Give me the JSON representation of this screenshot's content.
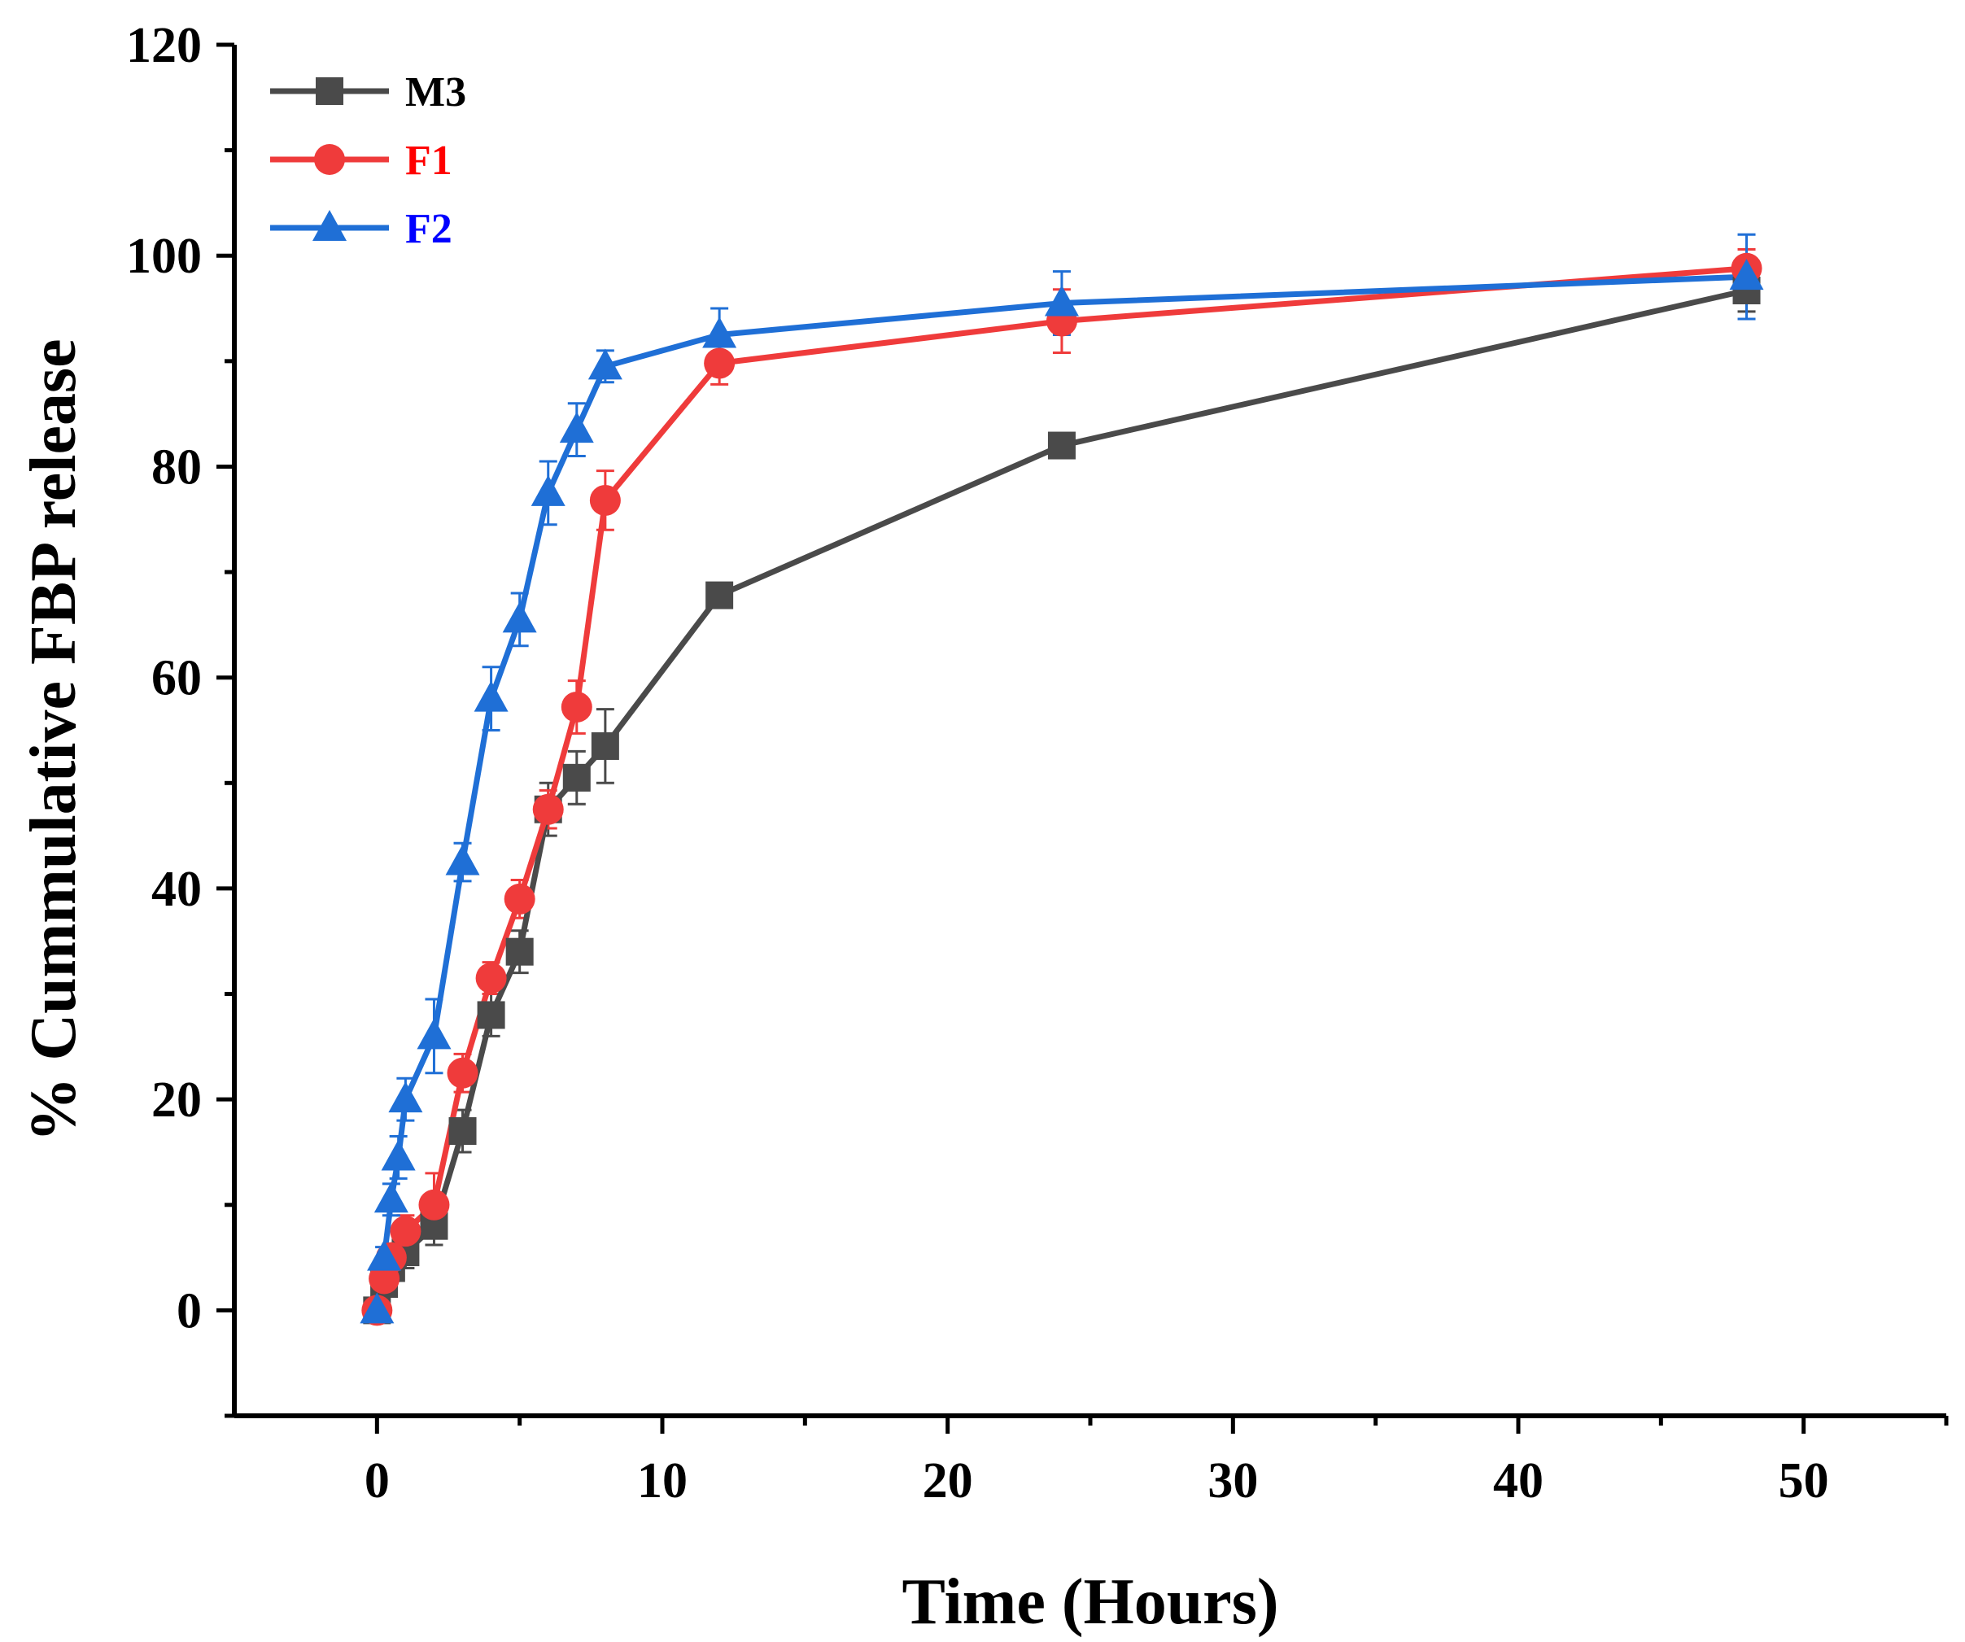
{
  "chart_data": {
    "type": "line",
    "title": "",
    "xlabel": "Time (Hours)",
    "ylabel": "% Cummulative FBP release",
    "xlim": [
      -5,
      55
    ],
    "ylim": [
      -10,
      120
    ],
    "xticks": [
      0,
      10,
      20,
      30,
      40,
      50
    ],
    "yticks": [
      0,
      20,
      40,
      60,
      80,
      100,
      120
    ],
    "x_minor_step": 5,
    "y_minor_step": 10,
    "legend_position": "top-left",
    "series": [
      {
        "name": "M3",
        "color": "#4a4a4a",
        "marker": "square",
        "x": [
          0,
          0.25,
          0.5,
          1,
          2,
          3,
          4,
          5,
          6,
          7,
          8,
          12,
          24,
          48
        ],
        "y": [
          0,
          2.5,
          4,
          5.5,
          8,
          17,
          28,
          34,
          47.5,
          50.5,
          53.5,
          67.8,
          82,
          96.7
        ],
        "err": [
          0.8,
          1,
          1.2,
          1.5,
          1.8,
          2,
          2,
          2,
          2.5,
          2.5,
          3.5,
          0.8,
          0.8,
          2
        ]
      },
      {
        "name": "F1",
        "color": "#ef3b3b",
        "marker": "circle",
        "x": [
          0,
          0.25,
          0.5,
          1,
          2,
          3,
          4,
          5,
          6,
          7,
          8,
          12,
          24,
          48
        ],
        "y": [
          0,
          3,
          5,
          7.5,
          10,
          22.5,
          31.5,
          39,
          47.5,
          57.2,
          76.8,
          89.8,
          93.8,
          98.8
        ],
        "err": [
          0.8,
          1,
          1.2,
          1.5,
          3,
          1.8,
          1.5,
          1.8,
          1.8,
          2.5,
          2.8,
          2,
          3,
          1.8
        ]
      },
      {
        "name": "F2",
        "color": "#1f6fd6",
        "marker": "triangle",
        "x": [
          0,
          0.25,
          0.5,
          0.75,
          1,
          2,
          3,
          4,
          5,
          6,
          7,
          8,
          12,
          24,
          48
        ],
        "y": [
          0,
          5,
          10.5,
          14.5,
          20,
          26,
          42.5,
          58,
          65.5,
          77.5,
          83.5,
          89.5,
          92.5,
          95.5,
          98
        ],
        "err": [
          0.8,
          1,
          1.5,
          2,
          2,
          3.5,
          1.8,
          3,
          2.5,
          3,
          2.5,
          1.5,
          2.5,
          3,
          4
        ]
      }
    ]
  }
}
